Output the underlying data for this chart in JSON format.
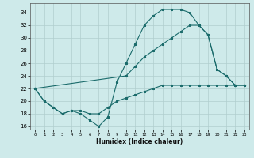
{
  "xlabel": "Humidex (Indice chaleur)",
  "bg_color": "#ceeaea",
  "grid_color": "#b0cece",
  "line_color": "#1a6b6b",
  "xlim": [
    -0.5,
    23.5
  ],
  "ylim": [
    15.5,
    35.5
  ],
  "yticks": [
    16,
    18,
    20,
    22,
    24,
    26,
    28,
    30,
    32,
    34
  ],
  "xticks": [
    0,
    1,
    2,
    3,
    4,
    5,
    6,
    7,
    8,
    9,
    10,
    11,
    12,
    13,
    14,
    15,
    16,
    17,
    18,
    19,
    20,
    21,
    22,
    23
  ],
  "curve1_x": [
    0,
    1,
    2,
    3,
    4,
    5,
    6,
    7,
    8,
    9,
    10,
    11,
    12,
    13,
    14,
    15,
    16,
    17,
    18,
    19,
    20,
    21,
    22
  ],
  "curve1_y": [
    22,
    20,
    19,
    18,
    18.5,
    18,
    17,
    16,
    17.5,
    23,
    26,
    29,
    32,
    33.5,
    34.5,
    34.5,
    34.5,
    34,
    32,
    30.5,
    25,
    24,
    22.5
  ],
  "curve2_x": [
    0,
    10,
    11,
    12,
    13,
    14,
    15,
    16,
    17,
    18,
    19,
    20,
    21,
    22,
    23
  ],
  "curve2_y": [
    22,
    24,
    25.5,
    27,
    28,
    29,
    30,
    31,
    32,
    32,
    30.5,
    25,
    24,
    22.5,
    22.5
  ],
  "curve3_x": [
    0,
    1,
    2,
    3,
    4,
    5,
    6,
    7,
    8,
    9,
    10,
    11,
    12,
    13,
    14,
    15,
    16,
    17,
    18,
    19,
    20,
    21,
    22,
    23
  ],
  "curve3_y": [
    22,
    20,
    19,
    18,
    18.5,
    18.5,
    18,
    18,
    19,
    20,
    20.5,
    21,
    21.5,
    22,
    22.5,
    22.5,
    22.5,
    22.5,
    22.5,
    22.5,
    22.5,
    22.5,
    22.5,
    22.5
  ]
}
